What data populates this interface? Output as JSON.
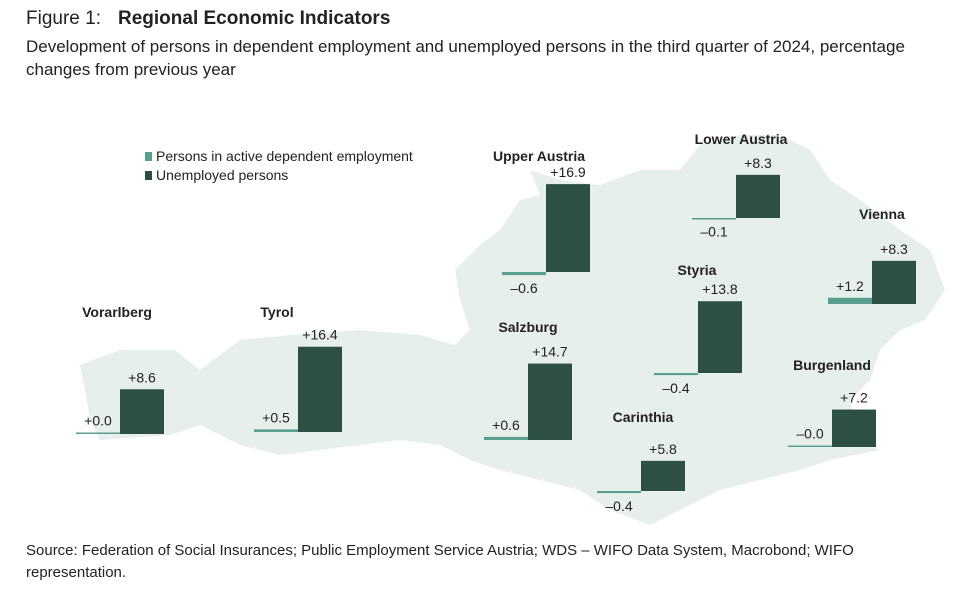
{
  "chart_data": {
    "type": "map-bar",
    "figure_label": "Figure 1:",
    "title": "Regional Economic Indicators",
    "subtitle": "Development of persons in dependent employment and unemployed persons in the third quarter of 2024, percentage changes from previous year",
    "source": "Source: Federation of Social Insurances; Public Employment Service Austria; WDS – WIFO Data System, Macrobond; WIFO representation.",
    "categories": [
      "Vorarlberg",
      "Tyrol",
      "Upper Austria",
      "Salzburg",
      "Lower Austria",
      "Styria",
      "Vienna",
      "Carinthia",
      "Burgenland"
    ],
    "series": [
      {
        "name": "Persons in active dependent employment",
        "color": "#5a9e8e",
        "values": [
          0.0,
          0.5,
          -0.6,
          0.6,
          -0.1,
          -0.4,
          1.2,
          -0.4,
          0
        ],
        "value_labels": [
          "+0.0",
          "+0.5",
          "–0.6",
          "+0.6",
          "–0.1",
          "–0.4",
          "+1.2",
          "–0.4",
          "–0.0"
        ]
      },
      {
        "name": "Unemployed persons",
        "color": "#2d4f45",
        "values": [
          8.6,
          16.4,
          16.9,
          14.7,
          8.3,
          13.8,
          8.3,
          5.8,
          7.2
        ],
        "value_labels": [
          "+8.6",
          "+16.4",
          "+16.9",
          "+14.7",
          "+8.3",
          "+13.8",
          "+8.3",
          "+5.8",
          "+7.2"
        ]
      }
    ]
  }
}
